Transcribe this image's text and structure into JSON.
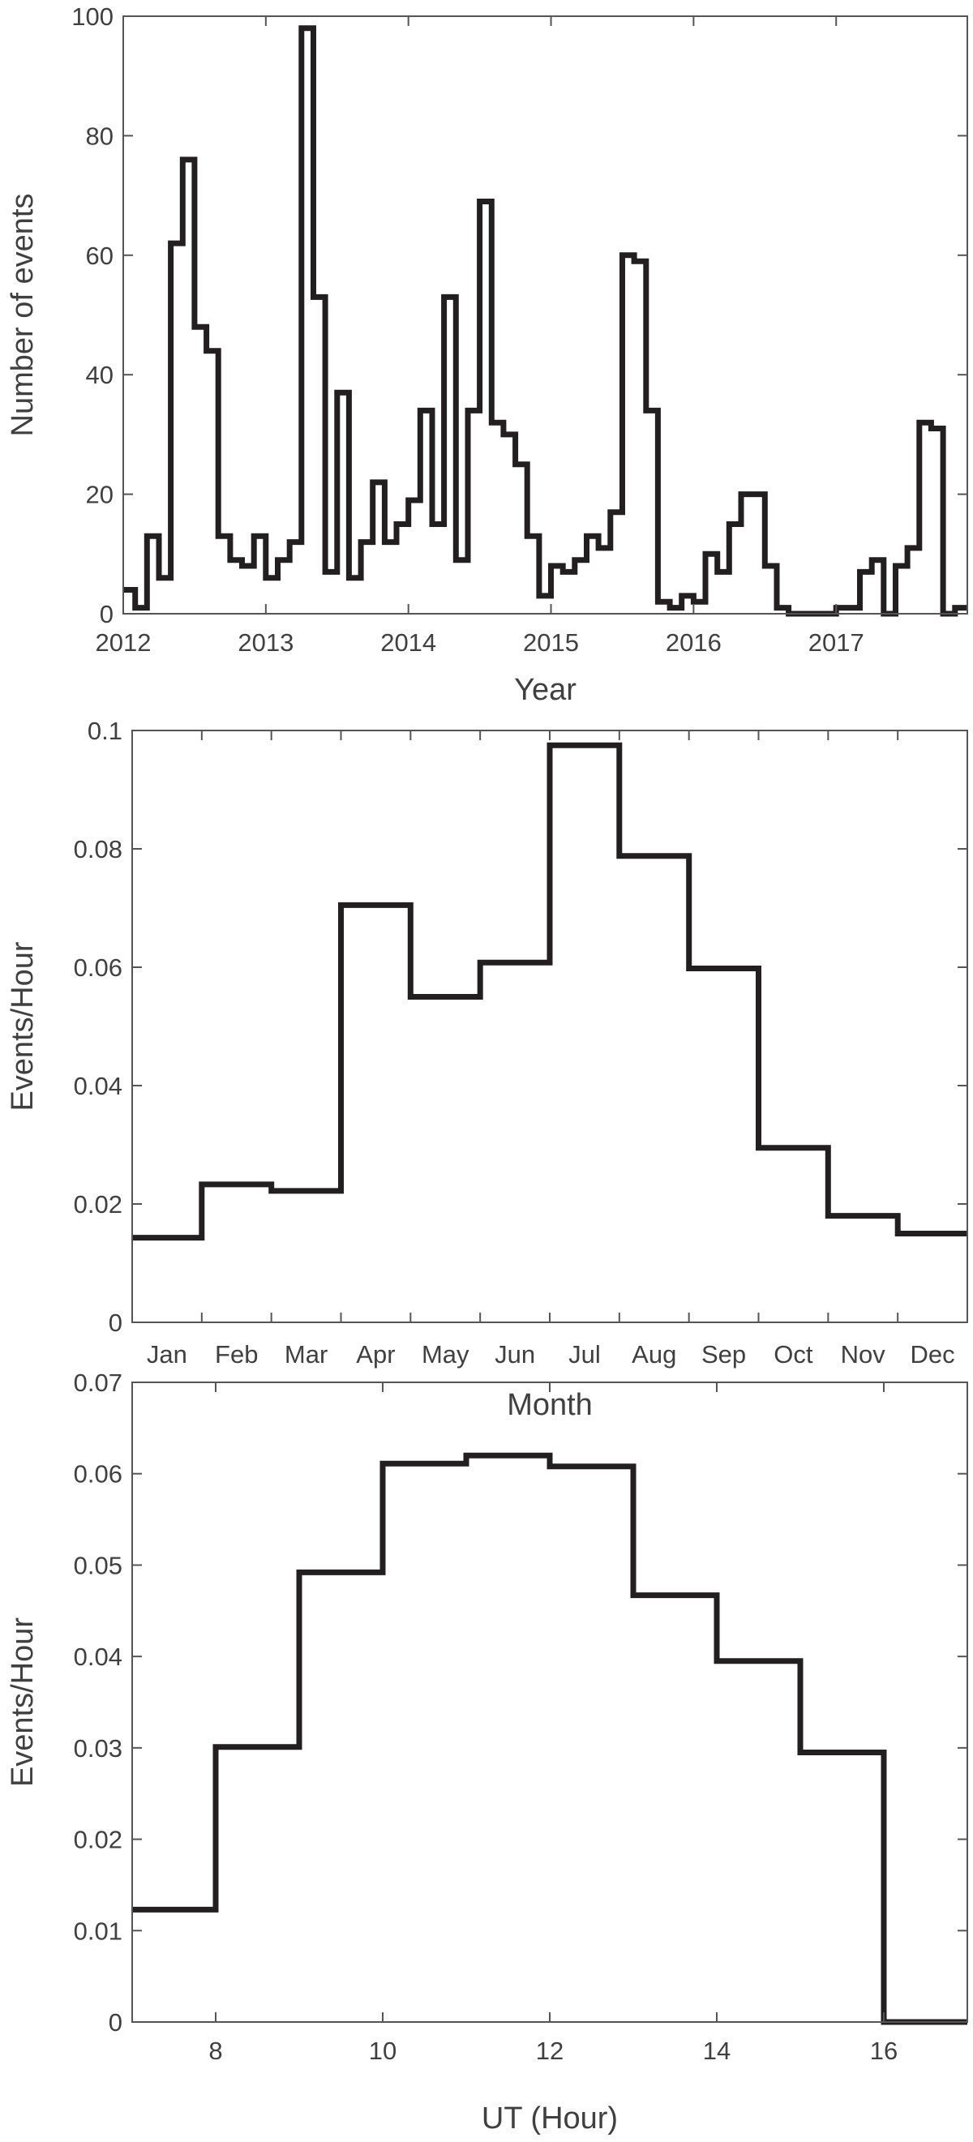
{
  "chart_data": [
    {
      "type": "line",
      "style": "stairs",
      "title": "",
      "xlabel": "Year",
      "ylabel": "Number of events",
      "xlim": [
        2012,
        2017.92
      ],
      "ylim": [
        0,
        100
      ],
      "xticks": [
        2012,
        2013,
        2014,
        2015,
        2016,
        2017
      ],
      "xtick_labels": [
        "2012",
        "2013",
        "2014",
        "2015",
        "2016",
        "2017"
      ],
      "yticks": [
        0,
        20,
        40,
        60,
        80,
        100
      ],
      "ytick_labels": [
        "0",
        "20",
        "40",
        "60",
        "80",
        "100"
      ],
      "bin_start": 2012,
      "bin_width": 0.083333,
      "values": [
        4,
        1,
        13,
        6,
        62,
        76,
        48,
        44,
        13,
        9,
        8,
        13,
        6,
        9,
        12,
        98,
        53,
        7,
        37,
        6,
        12,
        22,
        12,
        15,
        19,
        34,
        15,
        53,
        9,
        34,
        69,
        32,
        30,
        25,
        13,
        3,
        8,
        7,
        9,
        13,
        11,
        17,
        60,
        59,
        34,
        2,
        1,
        3,
        2,
        10,
        7,
        15,
        20,
        20,
        8,
        1,
        0,
        0,
        0,
        0,
        1,
        1,
        7,
        9,
        0,
        8,
        11,
        32,
        31,
        0,
        1
      ],
      "grid": false,
      "line_color": "#231f20"
    },
    {
      "type": "line",
      "style": "stairs",
      "title": "",
      "xlabel": "Month",
      "ylabel": "Events/Hour",
      "xlim": [
        0,
        12
      ],
      "ylim": [
        0,
        0.1
      ],
      "categories": [
        "Jan",
        "Feb",
        "Mar",
        "Apr",
        "May",
        "Jun",
        "Jul",
        "Aug",
        "Sep",
        "Oct",
        "Nov",
        "Dec"
      ],
      "yticks": [
        0,
        0.02,
        0.04,
        0.06,
        0.08,
        0.1
      ],
      "ytick_labels": [
        "0",
        "0.02",
        "0.04",
        "0.06",
        "0.08",
        "0.1"
      ],
      "bin_start": 0,
      "bin_width": 1,
      "values": [
        0.0143,
        0.0233,
        0.0222,
        0.0705,
        0.055,
        0.0608,
        0.0975,
        0.0788,
        0.0598,
        0.0295,
        0.018,
        0.015
      ],
      "grid": false,
      "line_color": "#231f20"
    },
    {
      "type": "line",
      "style": "stairs",
      "title": "",
      "xlabel": "UT (Hour)",
      "ylabel": "Events/Hour",
      "xlim": [
        7,
        17
      ],
      "ylim": [
        0,
        0.07
      ],
      "xticks": [
        8,
        10,
        12,
        14,
        16
      ],
      "xtick_labels": [
        "8",
        "10",
        "12",
        "14",
        "16"
      ],
      "yticks": [
        0,
        0.01,
        0.02,
        0.03,
        0.04,
        0.05,
        0.06,
        0.07
      ],
      "ytick_labels": [
        "0",
        "0.01",
        "0.02",
        "0.03",
        "0.04",
        "0.05",
        "0.06",
        "0.07"
      ],
      "bin_start": 7,
      "bin_width": 1,
      "values": [
        0.0123,
        0.0301,
        0.0492,
        0.0611,
        0.062,
        0.0608,
        0.0467,
        0.0395,
        0.0295,
        0
      ],
      "grid": false,
      "line_color": "#231f20"
    }
  ]
}
